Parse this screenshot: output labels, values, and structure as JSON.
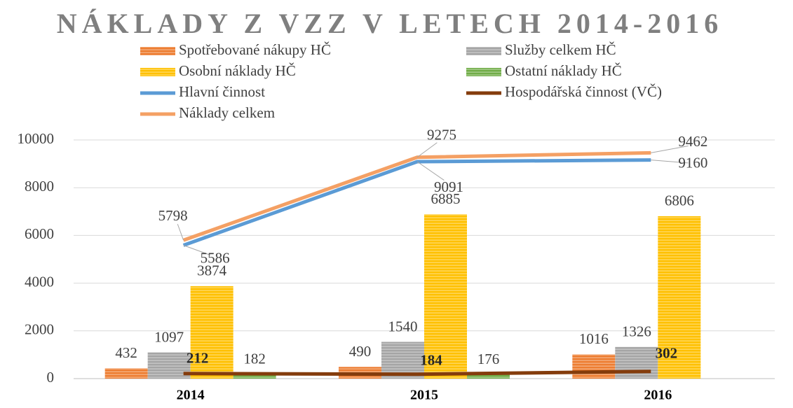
{
  "chart_data": {
    "type": "bar",
    "title": "NÁKLADY Z VZZ V LETECH 2014-2016",
    "categories": [
      "2014",
      "2015",
      "2016"
    ],
    "series": [
      {
        "name": "Spotřebované nákupy HČ",
        "color": "#ed7d31",
        "values": [
          432,
          490,
          1016
        ]
      },
      {
        "name": "Služby celkem HČ",
        "color": "#a5a5a5",
        "values": [
          1097,
          1540,
          1326
        ]
      },
      {
        "name": "Osobní náklady HČ",
        "color": "#ffc000",
        "values": [
          3874,
          6885,
          6806
        ]
      },
      {
        "name": "Ostatní náklady HČ",
        "color": "#70ad47",
        "values": [
          182,
          176,
          null
        ]
      },
      {
        "name": "Hlavní činnost",
        "type": "line",
        "color": "#5b9bd5",
        "values": [
          5586,
          9091,
          9160
        ]
      },
      {
        "name": "Hospodářská činnost (VČ)",
        "type": "line",
        "color": "#843c0c",
        "values": [
          212,
          184,
          302
        ]
      },
      {
        "name": "Náklady celkem",
        "type": "line",
        "color": "#f4a064",
        "values": [
          5798,
          9275,
          9462
        ]
      }
    ],
    "ylim": [
      0,
      10000
    ],
    "yticks": [
      0,
      2000,
      4000,
      6000,
      8000,
      10000
    ],
    "grid": true
  }
}
